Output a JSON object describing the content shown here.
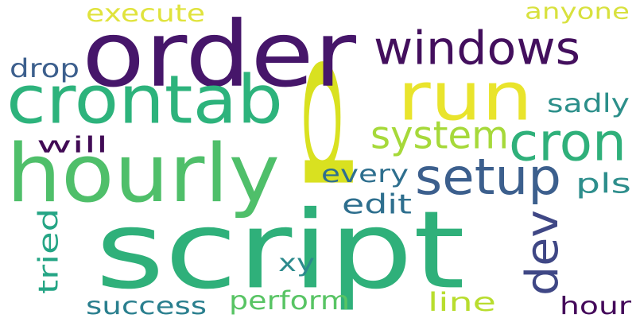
{
  "words": [
    {
      "text": "p",
      "color": "#d9e120",
      "rotated": true
    },
    {
      "text": "order",
      "color": "#46166a",
      "rotated": false
    },
    {
      "text": "script",
      "color": "#2fb07a",
      "rotated": false
    },
    {
      "text": "hourly",
      "color": "#4fbf6a",
      "rotated": false
    },
    {
      "text": "crontab",
      "color": "#2db37c",
      "rotated": false
    },
    {
      "text": "run",
      "color": "#e9e42c",
      "rotated": false
    },
    {
      "text": "windows",
      "color": "#430f5d",
      "rotated": false
    },
    {
      "text": "cron",
      "color": "#2fb07a",
      "rotated": false
    },
    {
      "text": "setup",
      "color": "#3c5f8d",
      "rotated": false
    },
    {
      "text": "system",
      "color": "#a6d93a",
      "rotated": false
    },
    {
      "text": "dev",
      "color": "#3f4785",
      "rotated": true
    },
    {
      "text": "execute",
      "color": "#e0e33c",
      "rotated": false
    },
    {
      "text": "anyone",
      "color": "#d8e13e",
      "rotated": false
    },
    {
      "text": "drop",
      "color": "#3c5f8d",
      "rotated": false
    },
    {
      "text": "sadly",
      "color": "#2c8f8a",
      "rotated": false
    },
    {
      "text": "will",
      "color": "#410b55",
      "rotated": false
    },
    {
      "text": "every",
      "color": "#2e6f8e",
      "rotated": false
    },
    {
      "text": "edit",
      "color": "#2e6f8e",
      "rotated": false
    },
    {
      "text": "pls",
      "color": "#2e8e8c",
      "rotated": false
    },
    {
      "text": "tried",
      "color": "#25a585",
      "rotated": true
    },
    {
      "text": "xy",
      "color": "#2c8a8c",
      "rotated": false
    },
    {
      "text": "success",
      "color": "#2a7f8e",
      "rotated": false
    },
    {
      "text": "perform",
      "color": "#58c464",
      "rotated": false
    },
    {
      "text": "line",
      "color": "#b8dd2e",
      "rotated": false
    },
    {
      "text": "hour",
      "color": "#44095a",
      "rotated": false
    }
  ]
}
